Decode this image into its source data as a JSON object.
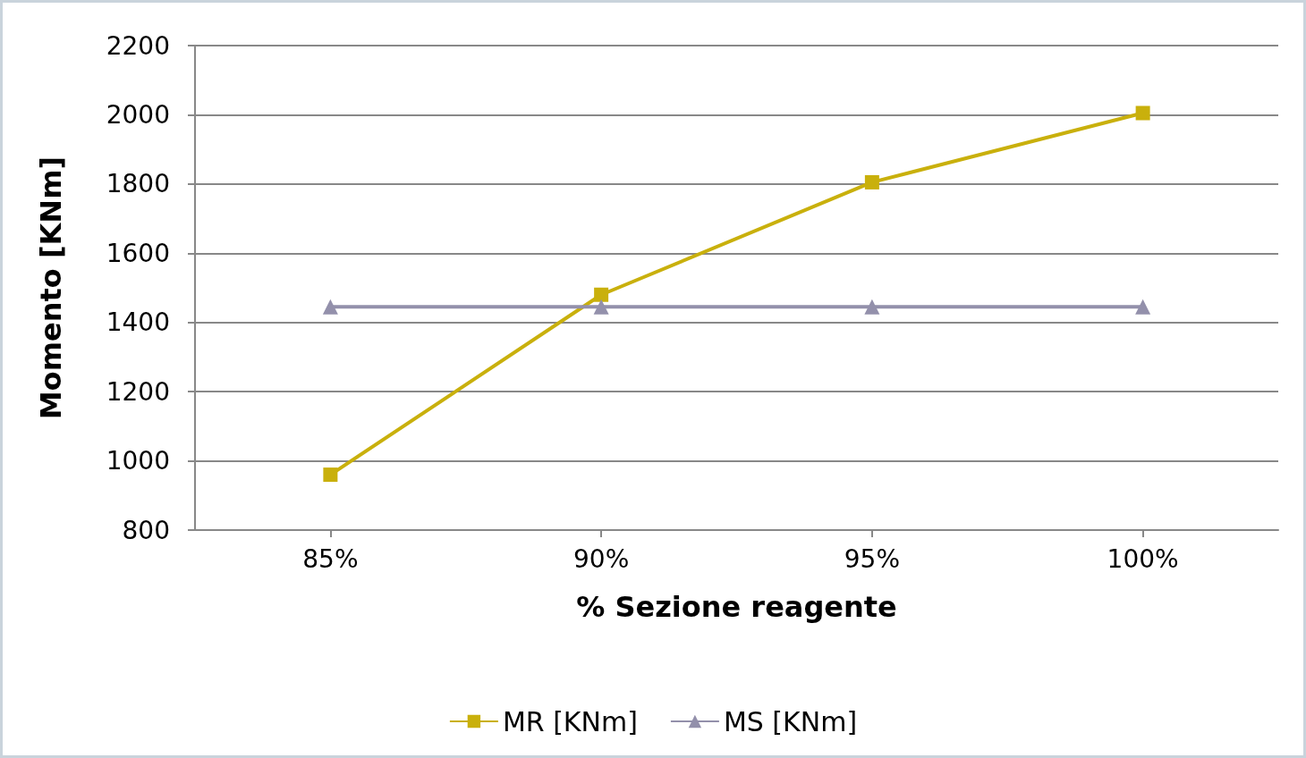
{
  "chart_data": {
    "type": "line",
    "xlabel": "% Sezione reagente",
    "ylabel": "Momento [KNm]",
    "categories": [
      "85%",
      "90%",
      "95%",
      "100%"
    ],
    "series": [
      {
        "name": "MR [KNm]",
        "color": "#c9b00c",
        "marker": "square",
        "values": [
          960,
          1480,
          1805,
          2005
        ]
      },
      {
        "name": "MS [KNm]",
        "color": "#9390ab",
        "marker": "triangle",
        "values": [
          1445,
          1445,
          1445,
          1445
        ]
      }
    ],
    "ylim": [
      800,
      2200
    ],
    "yticks": [
      800,
      1000,
      1200,
      1400,
      1600,
      1800,
      2000,
      2200
    ],
    "grid": "y",
    "legend": "bottom"
  }
}
